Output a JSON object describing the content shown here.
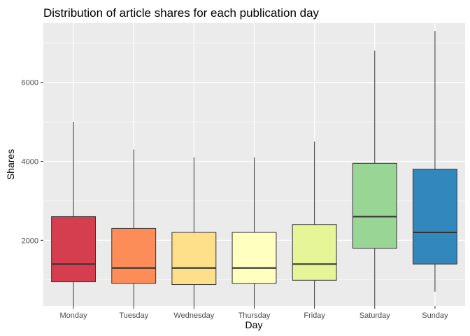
{
  "chart_data": {
    "type": "boxplot",
    "title": "Distribution of article shares for each publication day",
    "xlabel": "Day",
    "ylabel": "Shares",
    "ylim": [
      340,
      7500
    ],
    "yticks": [
      2000,
      4000,
      6000
    ],
    "grid": true,
    "legend": "none",
    "panel_background": "#ebebeb",
    "grid_color": "#ffffff",
    "categories": [
      "Monday",
      "Tuesday",
      "Wednesday",
      "Thursday",
      "Friday",
      "Saturday",
      "Sunday"
    ],
    "boxes": [
      {
        "category": "Monday",
        "whisker_low": 250,
        "q1": 950,
        "median": 1400,
        "q3": 2600,
        "whisker_high": 5000,
        "color": "#d53e4f"
      },
      {
        "category": "Tuesday",
        "whisker_low": 250,
        "q1": 910,
        "median": 1300,
        "q3": 2300,
        "whisker_high": 4300,
        "color": "#fc8d59"
      },
      {
        "category": "Wednesday",
        "whisker_low": 250,
        "q1": 880,
        "median": 1300,
        "q3": 2200,
        "whisker_high": 4100,
        "color": "#fee08b"
      },
      {
        "category": "Thursday",
        "whisker_low": 250,
        "q1": 910,
        "median": 1300,
        "q3": 2200,
        "whisker_high": 4100,
        "color": "#ffffbf"
      },
      {
        "category": "Friday",
        "whisker_low": 250,
        "q1": 990,
        "median": 1400,
        "q3": 2400,
        "whisker_high": 4500,
        "color": "#e6f598"
      },
      {
        "category": "Saturday",
        "whisker_low": 250,
        "q1": 1800,
        "median": 2600,
        "q3": 3950,
        "whisker_high": 6800,
        "color": "#99d594"
      },
      {
        "category": "Sunday",
        "whisker_low": 700,
        "q1": 1400,
        "median": 2200,
        "q3": 3800,
        "whisker_high": 7300,
        "color": "#3288bd"
      }
    ]
  }
}
